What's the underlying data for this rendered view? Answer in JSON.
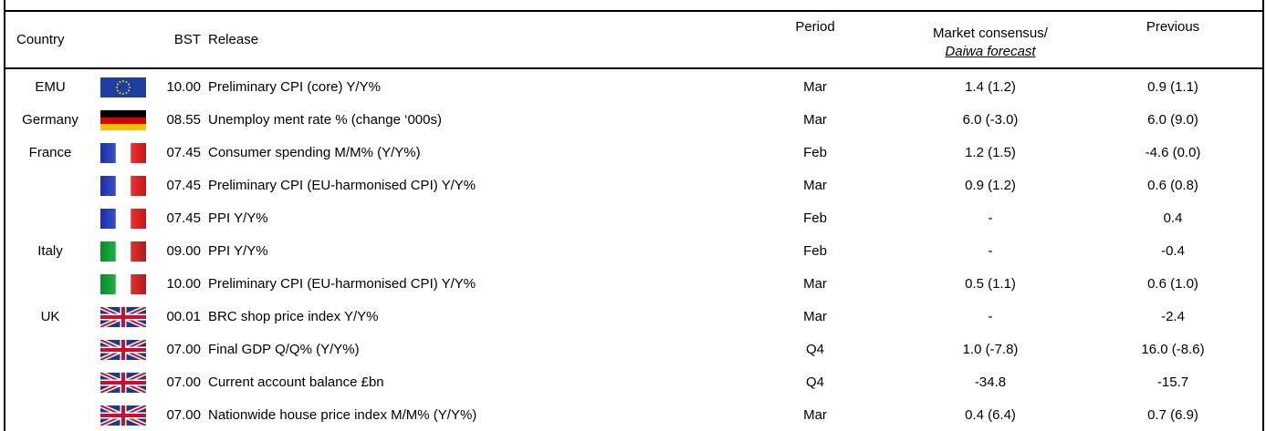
{
  "table": {
    "header": [
      "Country",
      "BST",
      "Release",
      "Period",
      "Market consensus/",
      "Daiwa forecast",
      "Previous"
    ],
    "rows": [
      [
        "EMU",
        "10.00",
        "Preliminary CPI (core) Y/Y%",
        "Mar",
        "1.4 (1.2)",
        "0.9 (1.1)"
      ],
      [
        "Germany",
        "08.55",
        "Unemploy ment rate % (change ‘000s)",
        "Mar",
        "6.0 (-3.0)",
        "6.0 (9.0)"
      ],
      [
        "France",
        "07.45",
        "Consumer spending M/M% (Y/Y%)",
        "Feb",
        "1.2 (1.5)",
        "-4.6 (0.0)"
      ],
      [
        null,
        "07.45",
        "Preliminary CPI (EU-harmonised CPI) Y/Y%",
        "Mar",
        "0.9 (1.2)",
        "0.6 (0.8)"
      ],
      [
        null,
        "07.45",
        "PPI Y/Y%",
        "Feb",
        "-",
        "0.4"
      ],
      [
        "Italy",
        "09.00",
        "PPI Y/Y%",
        "Feb",
        "-",
        "-0.4"
      ],
      [
        null,
        "10.00",
        "Preliminary CPI (EU-harmonised CPI) Y/Y%",
        "Mar",
        "0.5 (1.1)",
        "0.6 (1.0)"
      ],
      [
        "UK",
        "00.01",
        "BRC shop price index Y/Y%",
        "Mar",
        "-",
        "-2.4"
      ],
      [
        null,
        "07.00",
        "Final GDP Q/Q% (Y/Y%)",
        "Q4",
        "1.0 (-7.8)",
        "16.0 (-8.6)"
      ],
      [
        null,
        "07.00",
        "Current account balance £bn",
        "Q4",
        "-34.8",
        "-15.7"
      ],
      [
        null,
        "07.00",
        "Nationwide house price index M/M% (Y/Y%)",
        "Mar",
        "0.4 (6.4)",
        "0.7 (6.9)"
      ]
    ]
  }
}
